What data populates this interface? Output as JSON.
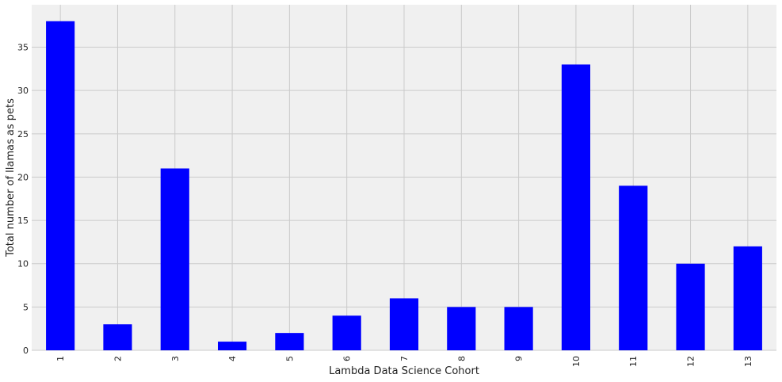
{
  "chart_data": {
    "type": "bar",
    "title": "",
    "xlabel": "Lambda Data Science Cohort",
    "ylabel": "Total number of llamas as pets",
    "categories": [
      "1",
      "2",
      "3",
      "4",
      "5",
      "6",
      "7",
      "8",
      "9",
      "10",
      "11",
      "12",
      "13"
    ],
    "values": [
      38,
      3,
      21,
      1,
      2,
      4,
      6,
      5,
      5,
      33,
      19,
      10,
      12
    ],
    "ylim": [
      0,
      39.9
    ],
    "yticks": [
      0,
      5,
      10,
      15,
      20,
      25,
      30,
      35
    ],
    "grid": true,
    "x_tick_rotation": "vertical",
    "colors": {
      "bar": "#0000ff",
      "plot_background": "#f0f0f0",
      "grid": "#cbcbcb"
    }
  }
}
